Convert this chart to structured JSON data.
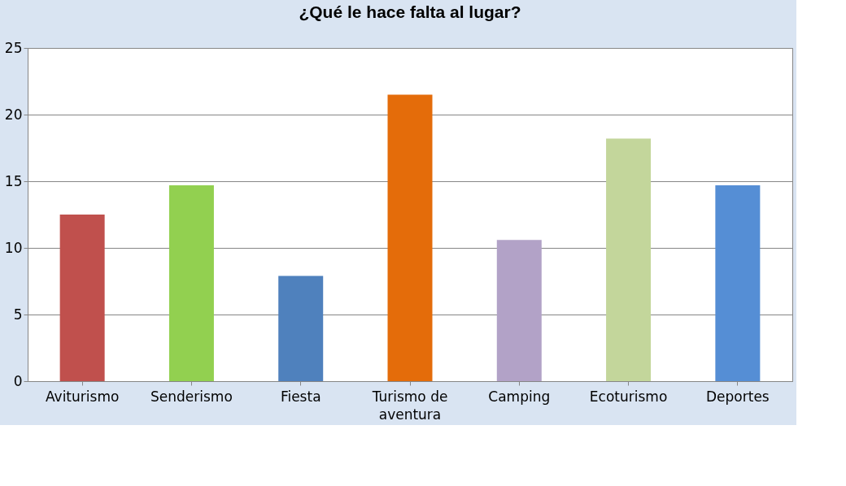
{
  "chart_data": {
    "type": "bar",
    "title": "¿Qué le hace falta al lugar?",
    "categories": [
      "Aviturismo",
      "Senderismo",
      "Fiesta",
      "Turismo de aventura",
      "Camping",
      "Ecoturismo",
      "Deportes"
    ],
    "values": [
      12.5,
      14.7,
      7.9,
      21.5,
      10.6,
      18.2,
      14.7
    ],
    "colors": [
      "#c0504d",
      "#92d050",
      "#4f81bd",
      "#e46c0a",
      "#b2a2c7",
      "#c3d69b",
      "#558ed5"
    ],
    "ylim": [
      0,
      25
    ],
    "yticks": [
      0,
      5,
      10,
      15,
      20,
      25
    ],
    "grid": "y"
  }
}
